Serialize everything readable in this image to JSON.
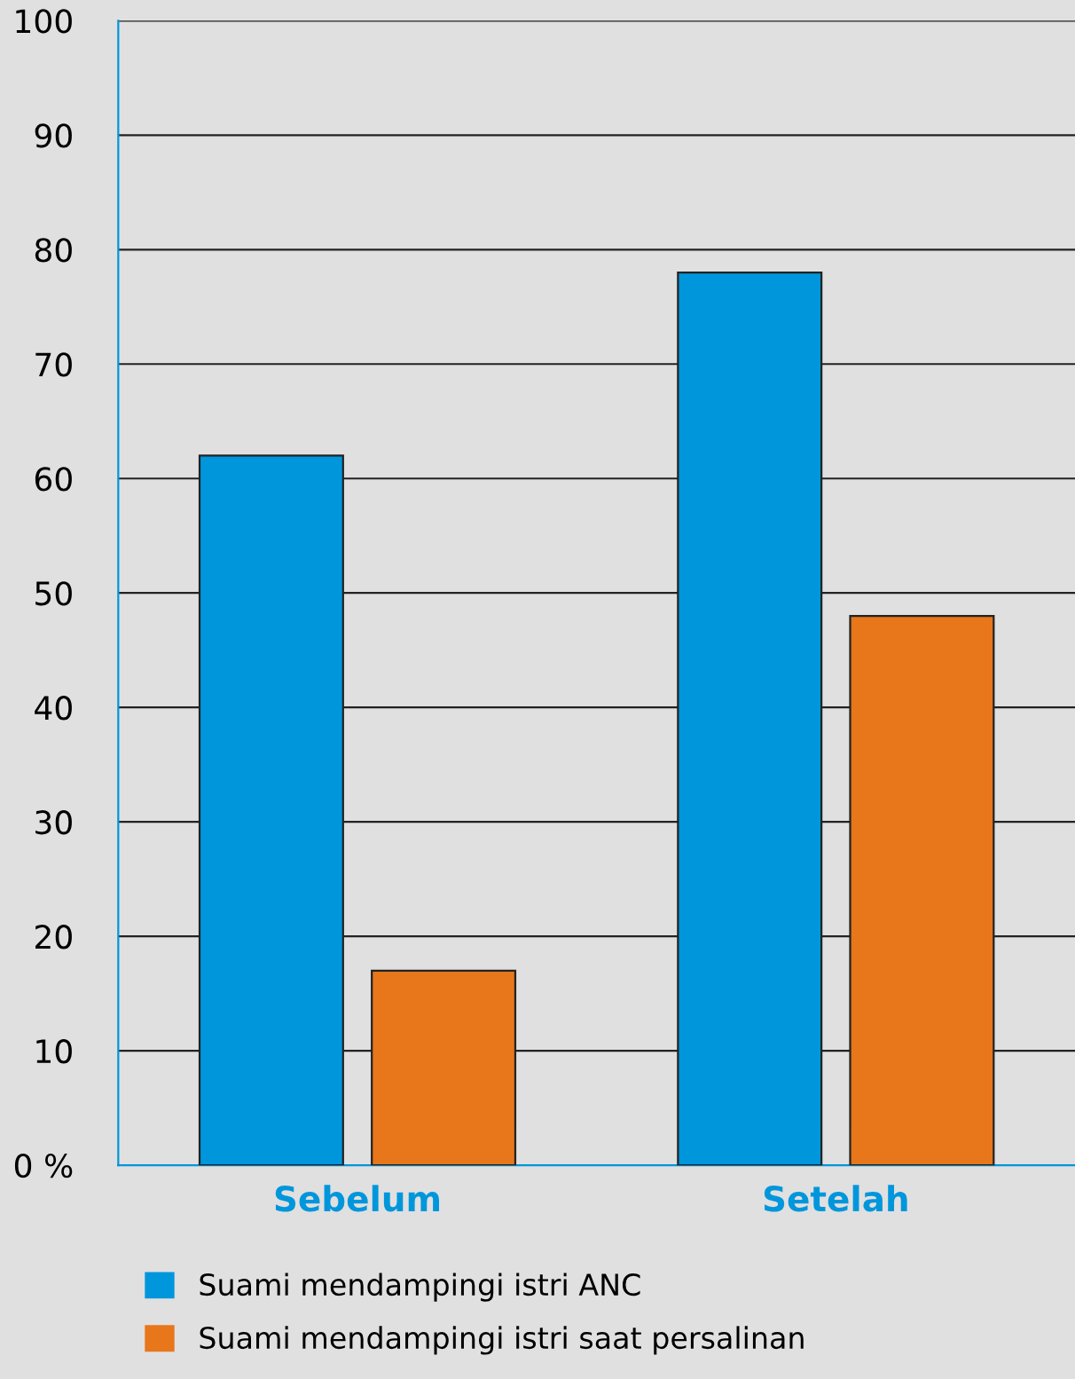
{
  "chart_data": {
    "type": "bar",
    "categories": [
      "Sebelum",
      "Setelah"
    ],
    "series": [
      {
        "name": "Suami mendampingi istri ANC",
        "color": "#0096dc",
        "values": [
          62,
          78
        ]
      },
      {
        "name": "Suami mendampingi istri saat persalinan",
        "color": "#e8761a",
        "values": [
          17,
          48
        ]
      }
    ],
    "ylim": [
      0,
      100
    ],
    "yticks": [
      {
        "value": 0,
        "label": "0 %"
      },
      10,
      20,
      30,
      40,
      50,
      60,
      70,
      80,
      90,
      100
    ],
    "grid": "y",
    "legend": "bottom"
  }
}
